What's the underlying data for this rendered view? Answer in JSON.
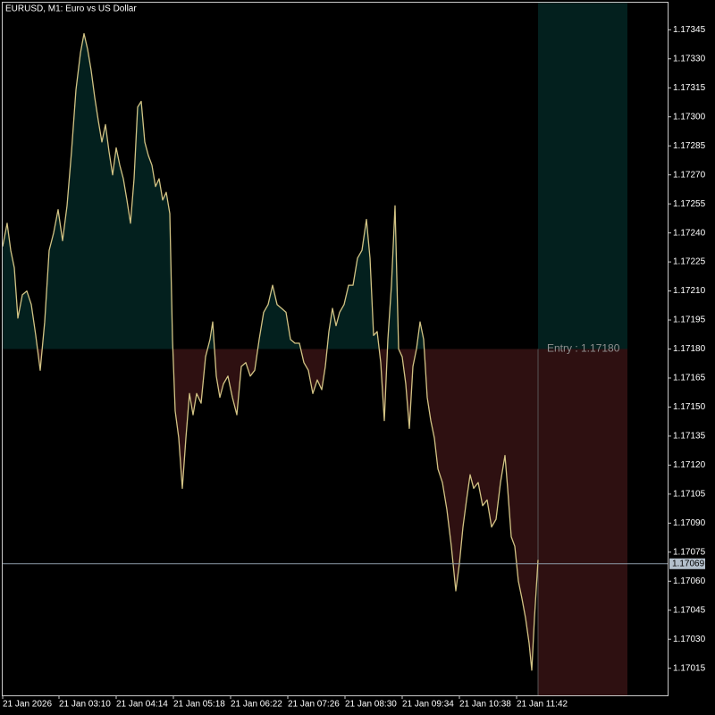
{
  "chart_data": {
    "type": "line",
    "title": "EURUSD, M1:  Euro vs US Dollar",
    "x": [
      0,
      5,
      9,
      13,
      17,
      22,
      27,
      32,
      37,
      42,
      47,
      52,
      57,
      62,
      67,
      72,
      77,
      82,
      87,
      91,
      95,
      99,
      103,
      107,
      111,
      115,
      119,
      123,
      127,
      131,
      135,
      139,
      143,
      147,
      151,
      155,
      159,
      163,
      167,
      171,
      175,
      179,
      183,
      187,
      190,
      193,
      197,
      201,
      205,
      209,
      213,
      217,
      222,
      227,
      232,
      235,
      239,
      243,
      247,
      252,
      257,
      262,
      267,
      272,
      277,
      282,
      287,
      292,
      297,
      302,
      307,
      312,
      317,
      322,
      327,
      332,
      337,
      342,
      347,
      352,
      357,
      361,
      365,
      369,
      373,
      377,
      382,
      387,
      392,
      397,
      402,
      407,
      411,
      415,
      419,
      423,
      427,
      431,
      435,
      439,
      443,
      447,
      451,
      455,
      459,
      463,
      467,
      471,
      475,
      479,
      483,
      487,
      492,
      497,
      502,
      507,
      511,
      515,
      519,
      523,
      527,
      532,
      537,
      542,
      547,
      552,
      557,
      562,
      565,
      569,
      573,
      577,
      581,
      585,
      589,
      592,
      595,
      599
    ],
    "series": [
      {
        "name": "EURUSD",
        "color": "#d2c384",
        "values": [
          1.17233,
          1.17245,
          1.17231,
          1.17222,
          1.17196,
          1.17208,
          1.1721,
          1.17203,
          1.17187,
          1.17169,
          1.17194,
          1.17231,
          1.1724,
          1.17252,
          1.17236,
          1.17254,
          1.17282,
          1.17314,
          1.17333,
          1.17343,
          1.17335,
          1.17324,
          1.1731,
          1.17298,
          1.17287,
          1.17296,
          1.17282,
          1.1727,
          1.17284,
          1.17275,
          1.17268,
          1.17257,
          1.17245,
          1.17268,
          1.17305,
          1.17308,
          1.17287,
          1.1728,
          1.17275,
          1.17264,
          1.17268,
          1.17257,
          1.17261,
          1.1725,
          1.17185,
          1.17148,
          1.17134,
          1.17108,
          1.17134,
          1.17157,
          1.17146,
          1.17157,
          1.17152,
          1.17176,
          1.17185,
          1.17194,
          1.17166,
          1.17155,
          1.17162,
          1.17166,
          1.17155,
          1.17146,
          1.17171,
          1.17173,
          1.17166,
          1.17169,
          1.17185,
          1.17199,
          1.17203,
          1.17213,
          1.17203,
          1.17201,
          1.17199,
          1.17185,
          1.17183,
          1.17183,
          1.17173,
          1.17169,
          1.17157,
          1.17164,
          1.17159,
          1.17171,
          1.17189,
          1.17201,
          1.17192,
          1.17199,
          1.17203,
          1.17213,
          1.17213,
          1.17227,
          1.17231,
          1.17247,
          1.17227,
          1.17187,
          1.17189,
          1.17173,
          1.17143,
          1.17185,
          1.17213,
          1.17254,
          1.1718,
          1.17176,
          1.17162,
          1.17139,
          1.17171,
          1.1718,
          1.17194,
          1.17185,
          1.17155,
          1.17143,
          1.17134,
          1.17118,
          1.17111,
          1.17097,
          1.17078,
          1.17055,
          1.17069,
          1.17088,
          1.17102,
          1.17115,
          1.17108,
          1.17111,
          1.17099,
          1.17102,
          1.17088,
          1.17092,
          1.17111,
          1.17125,
          1.17108,
          1.17083,
          1.17078,
          1.1706,
          1.17051,
          1.17041,
          1.17028,
          1.17014,
          1.17041,
          1.17071
        ]
      }
    ],
    "xlim": [
      0,
      744
    ],
    "xticks": [
      {
        "value": 0,
        "label": "21 Jan 2026"
      },
      {
        "value": 63,
        "label": "21 Jan 03:10"
      },
      {
        "value": 127,
        "label": "21 Jan 04:14"
      },
      {
        "value": 191,
        "label": "21 Jan 05:18"
      },
      {
        "value": 255,
        "label": "21 Jan 06:22"
      },
      {
        "value": 319,
        "label": "21 Jan 07:26"
      },
      {
        "value": 383,
        "label": "21 Jan 08:30"
      },
      {
        "value": 447,
        "label": "21 Jan 09:34"
      },
      {
        "value": 511,
        "label": "21 Jan 10:38"
      },
      {
        "value": 575,
        "label": "21 Jan 11:42"
      }
    ],
    "ylim": [
      1.17001,
      1.17359
    ],
    "yticks": [
      1.17345,
      {
        "value": 1.1733,
        "label": "1.17330"
      },
      1.17315,
      {
        "value": 1.173,
        "label": "1.17300"
      },
      1.17285,
      {
        "value": 1.1727,
        "label": "1.17270"
      },
      1.17255,
      {
        "value": 1.1724,
        "label": "1.17240"
      },
      1.17225,
      {
        "value": 1.1721,
        "label": "1.17210"
      },
      1.17195,
      {
        "value": 1.1718,
        "label": "1.17180"
      },
      1.17165,
      {
        "value": 1.1715,
        "label": "1.17150"
      },
      1.17135,
      {
        "value": 1.1712,
        "label": "1.17120"
      },
      1.17105,
      {
        "value": 1.1709,
        "label": "1.17090"
      },
      1.17075,
      {
        "value": 1.1706,
        "label": "1.17060"
      },
      1.17045,
      {
        "value": 1.1703,
        "label": "1.17030"
      },
      1.17015
    ],
    "entry": {
      "value": 1.1718,
      "label": "Entry : 1.17180"
    },
    "current_price": {
      "value": 1.17069,
      "label": "1.17069"
    },
    "above_color": "#03201e",
    "below_color": "#2e1011",
    "grid": false
  }
}
